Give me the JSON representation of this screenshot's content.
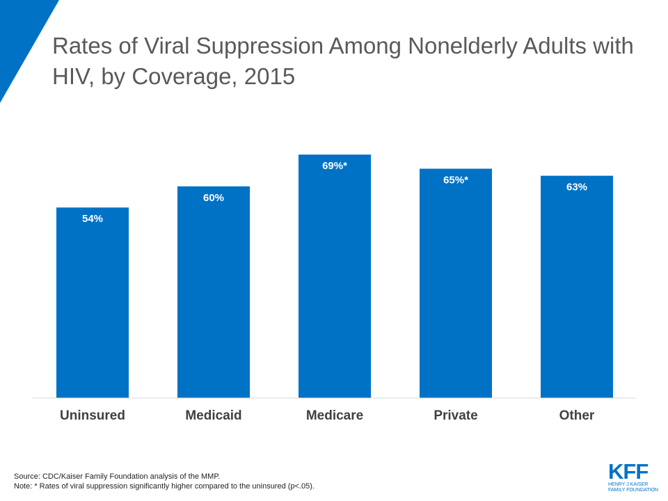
{
  "colors": {
    "bar": "#0072c6",
    "accent": "#0072c6",
    "axis": "#d9d9d9"
  },
  "title": "Rates of Viral Suppression Among Nonelderly Adults with HIV, by Coverage, 2015",
  "chart_data": {
    "type": "bar",
    "title": "Rates of Viral Suppression Among Nonelderly Adults with HIV, by Coverage, 2015",
    "categories": [
      "Uninsured",
      "Medicaid",
      "Medicare",
      "Private",
      "Other"
    ],
    "values": [
      54,
      60,
      69,
      65,
      63
    ],
    "data_labels": [
      "54%",
      "60%",
      "69%*",
      "65%*",
      "63%"
    ],
    "xlabel": "",
    "ylabel": "",
    "ylim": [
      0,
      100
    ],
    "grid": false,
    "legend": "none"
  },
  "footnotes": {
    "source": "Source: CDC/Kaiser Family Foundation analysis of the MMP.",
    "note": "Note: * Rates of viral suppression significantly higher compared to the uninsured (p<.05)."
  },
  "logo": {
    "mark": "KFF",
    "line1": "HENRY J KAISER",
    "line2": "FAMILY FOUNDATION"
  }
}
